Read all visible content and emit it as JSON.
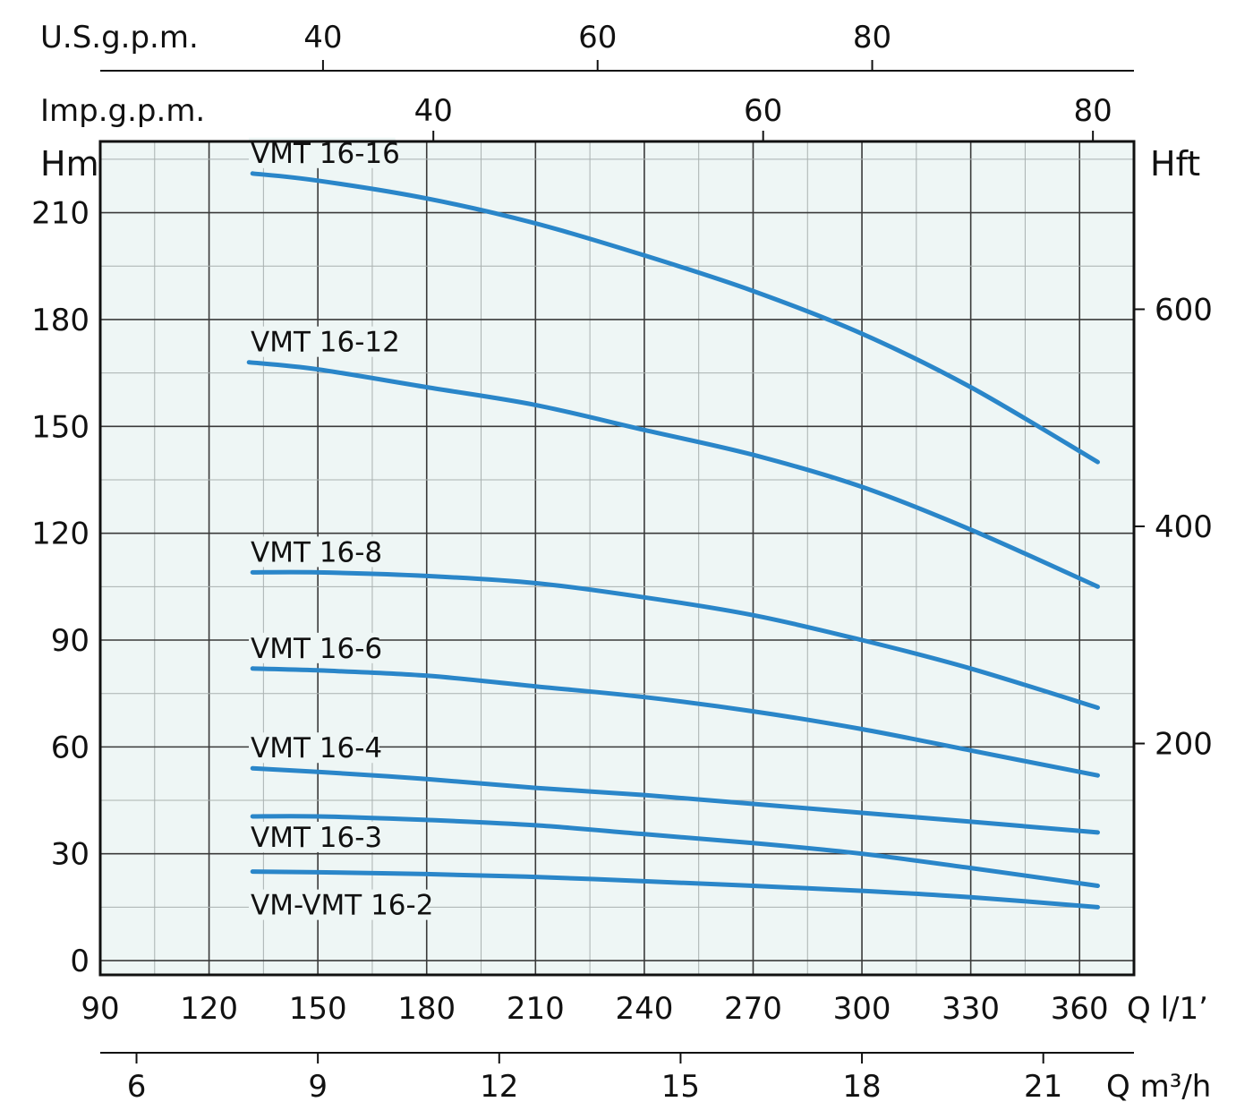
{
  "chart_data": {
    "type": "line",
    "colors": {
      "curve": "#2a86c9",
      "plot_bg": "#eef6f5",
      "grid": "#a9b1b0",
      "frame": "#111111"
    },
    "axes": {
      "bottom_primary": {
        "label": "Q l/1'",
        "unit_label": "Q l/1’",
        "ticks": [
          90,
          120,
          150,
          180,
          210,
          240,
          270,
          300,
          330,
          360
        ],
        "range": [
          90,
          375
        ]
      },
      "bottom_secondary": {
        "label": "Q m³/h",
        "unit_label": "Q m³/h",
        "ticks": [
          6,
          9,
          12,
          15,
          18,
          21
        ]
      },
      "top_primary": {
        "label": "U.S.g.p.m.",
        "ticks": [
          40,
          60,
          80
        ]
      },
      "top_secondary": {
        "label": "Imp.g.p.m.",
        "ticks": [
          40,
          60,
          80
        ]
      },
      "left": {
        "label": "Hm",
        "ticks": [
          0,
          30,
          60,
          90,
          120,
          150,
          180,
          210
        ],
        "range": [
          -4,
          230
        ]
      },
      "right": {
        "label": "Hft",
        "ticks": [
          200,
          400,
          600
        ]
      }
    },
    "grid": true,
    "series": [
      {
        "name": "VMT 16-16",
        "x": [
          132,
          150,
          180,
          210,
          240,
          270,
          300,
          330,
          365
        ],
        "y": [
          221,
          219,
          214,
          207,
          198,
          188,
          176,
          161,
          140
        ]
      },
      {
        "name": "VMT 16-12",
        "x": [
          131,
          150,
          180,
          210,
          240,
          270,
          300,
          330,
          365
        ],
        "y": [
          168,
          166,
          161,
          156,
          149,
          142,
          133,
          121,
          105
        ]
      },
      {
        "name": "VMT 16-8",
        "x": [
          132,
          150,
          180,
          210,
          240,
          270,
          300,
          330,
          365
        ],
        "y": [
          109,
          109,
          108,
          106,
          102,
          97,
          90,
          82,
          71
        ]
      },
      {
        "name": "VMT 16-6",
        "x": [
          132,
          150,
          180,
          210,
          240,
          270,
          300,
          330,
          365
        ],
        "y": [
          82,
          81.5,
          80,
          77,
          74,
          70,
          65,
          59,
          52
        ]
      },
      {
        "name": "VMT 16-4",
        "x": [
          132,
          150,
          180,
          210,
          240,
          270,
          300,
          330,
          365
        ],
        "y": [
          54,
          53,
          51,
          48.5,
          46.5,
          44,
          41.5,
          39,
          36
        ]
      },
      {
        "name": "VMT 16-3",
        "x": [
          132,
          150,
          180,
          210,
          240,
          270,
          300,
          330,
          365
        ],
        "y": [
          40.5,
          40.5,
          39.5,
          38,
          35.5,
          33,
          30,
          26,
          21
        ]
      },
      {
        "name": "VM-VMT 16-2",
        "x": [
          132,
          150,
          180,
          210,
          240,
          270,
          300,
          330,
          365
        ],
        "y": [
          25,
          24.8,
          24.3,
          23.5,
          22.3,
          21,
          19.6,
          17.8,
          15
        ]
      }
    ]
  }
}
